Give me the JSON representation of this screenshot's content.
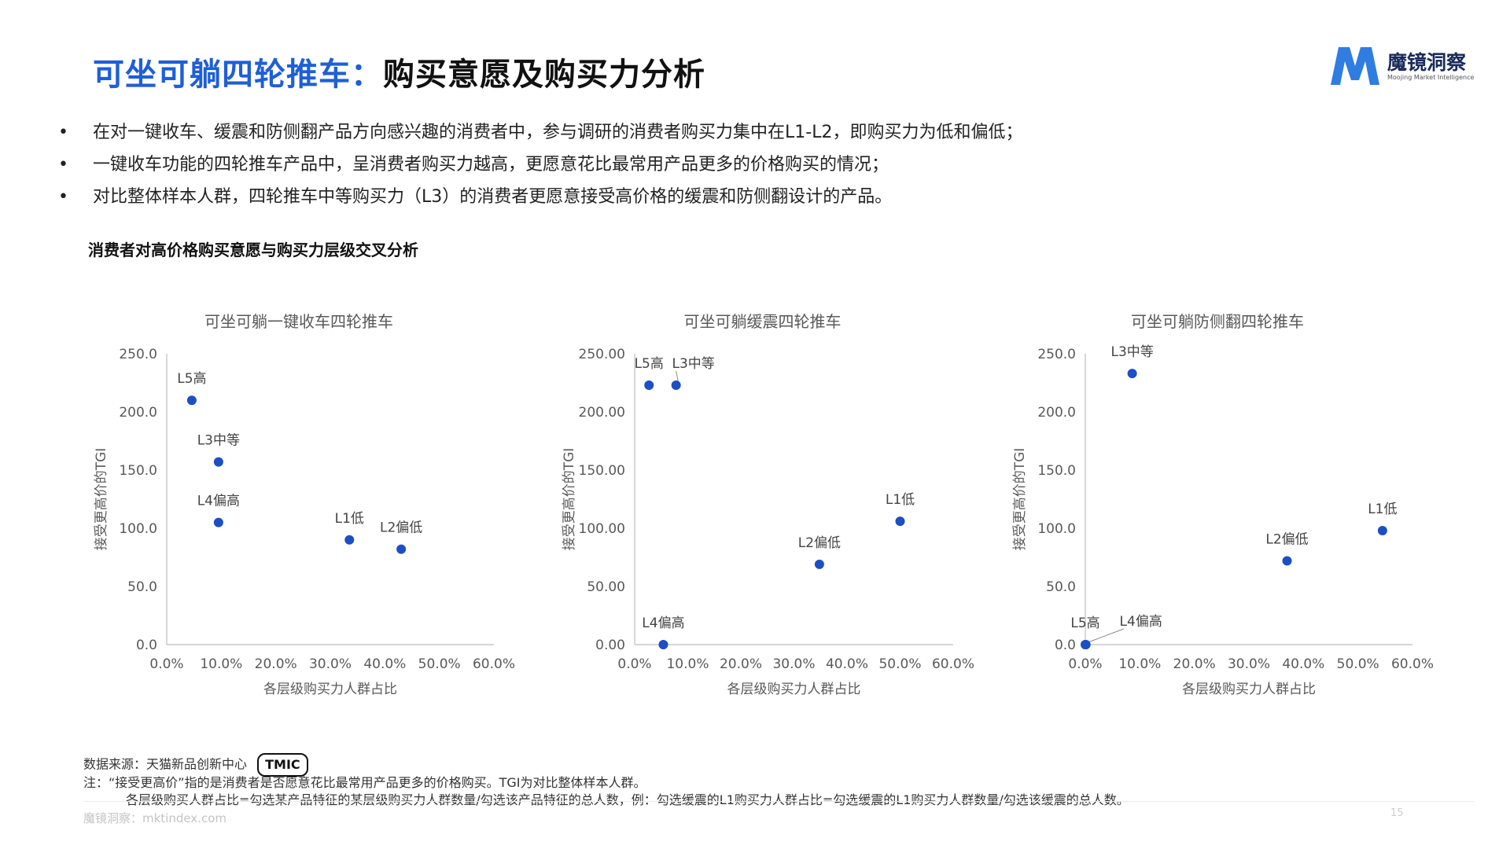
{
  "header": {
    "title_blue": "可坐可躺四轮推车：",
    "title_black": "购买意愿及购买力分析"
  },
  "logo": {
    "name": "魔镜洞察",
    "subtitle": "Moojing Market Intelligence",
    "brand_color": "#2f7de1"
  },
  "bullet_symbol": "•",
  "bullets": [
    "在对一键收车、缓震和防侧翻产品方向感兴趣的消费者中，参与调研的消费者购买力集中在L1-L2，即购买力为低和偏低；",
    "一键收车功能的四轮推车产品中，呈消费者购买力越高，更愿意花比最常用产品更多的价格购买的情况；",
    "对比整体样本人群，四轮推车中等购买力（L3）的消费者更愿意接受高价格的缓震和防侧翻设计的产品。"
  ],
  "section_title": "消费者对高价格购买意愿与购买力层级交叉分析",
  "colors": {
    "point": "#1c4fc4",
    "axis": "#bdbdbd",
    "tick_text": "#595959"
  },
  "chart_data": [
    {
      "type": "scatter",
      "title": "可坐可躺一键收车四轮推车",
      "xlabel": "各层级购买力人群占比",
      "ylabel": "接受更高价的TGI",
      "xlim": [
        0,
        60
      ],
      "ylim": [
        0,
        250
      ],
      "x_ticks": [
        "0.0%",
        "10.0%",
        "20.0%",
        "30.0%",
        "40.0%",
        "50.0%",
        "60.0%"
      ],
      "y_ticks": [
        "0.0",
        "50.0",
        "100.0",
        "150.0",
        "200.0",
        "250.0"
      ],
      "points": [
        {
          "label": "L5高",
          "x": 4.6,
          "y": 210
        },
        {
          "label": "L3中等",
          "x": 9.5,
          "y": 157
        },
        {
          "label": "L4偏高",
          "x": 9.5,
          "y": 105
        },
        {
          "label": "L1低",
          "x": 33.5,
          "y": 90
        },
        {
          "label": "L2偏低",
          "x": 43.0,
          "y": 82
        }
      ]
    },
    {
      "type": "scatter",
      "title": "可坐可躺缓震四轮推车",
      "xlabel": "各层级购买力人群占比",
      "ylabel": "接受更高价的TGI",
      "xlim": [
        0,
        60
      ],
      "ylim": [
        0,
        250
      ],
      "x_ticks": [
        "0.0%",
        "10.0%",
        "20.0%",
        "30.0%",
        "40.0%",
        "50.0%",
        "60.0%"
      ],
      "y_ticks": [
        "0.00",
        "50.00",
        "100.00",
        "150.00",
        "200.00",
        "250.00"
      ],
      "points": [
        {
          "label": "L5高",
          "x": 2.7,
          "y": 223
        },
        {
          "label": "L3中等",
          "x": 7.8,
          "y": 223
        },
        {
          "label": "L4偏高",
          "x": 5.4,
          "y": 0
        },
        {
          "label": "L2偏低",
          "x": 34.8,
          "y": 69
        },
        {
          "label": "L1低",
          "x": 50.0,
          "y": 106
        }
      ]
    },
    {
      "type": "scatter",
      "title": "可坐可躺防侧翻四轮推车",
      "xlabel": "各层级购买力人群占比",
      "ylabel": "接受更高价的TGI",
      "xlim": [
        0,
        60
      ],
      "ylim": [
        0,
        250
      ],
      "x_ticks": [
        "0.0%",
        "10.0%",
        "20.0%",
        "30.0%",
        "40.0%",
        "50.0%",
        "60.0%"
      ],
      "y_ticks": [
        "0.0",
        "50.0",
        "100.0",
        "150.0",
        "200.0",
        "250.0"
      ],
      "points": [
        {
          "label": "L3中等",
          "x": 8.6,
          "y": 233
        },
        {
          "label": "L5高",
          "x": 0,
          "y": 0
        },
        {
          "label": "L4偏高",
          "x": 0.1,
          "y": 0
        },
        {
          "label": "L2偏低",
          "x": 37.0,
          "y": 72
        },
        {
          "label": "L1低",
          "x": 54.5,
          "y": 98
        }
      ]
    }
  ],
  "footer": {
    "source": "数据来源：天猫新品创新中心",
    "source_badge": "TMIC",
    "note": "注：“接受更高价”指的是消费者是否愿意花比最常用产品更多的价格购买。TGI为对比整体样本人群。",
    "note2": "各层级购买人群占比=勾选某产品特征的某层级购买力人群数量/勾选该产品特征的总人数，例：勾选缓震的L1购买力人群占比=勾选缓震的L1购买力人群数量/勾选该缓震的总人数。",
    "site": "魔镜洞察：mktindex.com",
    "page": "15"
  }
}
